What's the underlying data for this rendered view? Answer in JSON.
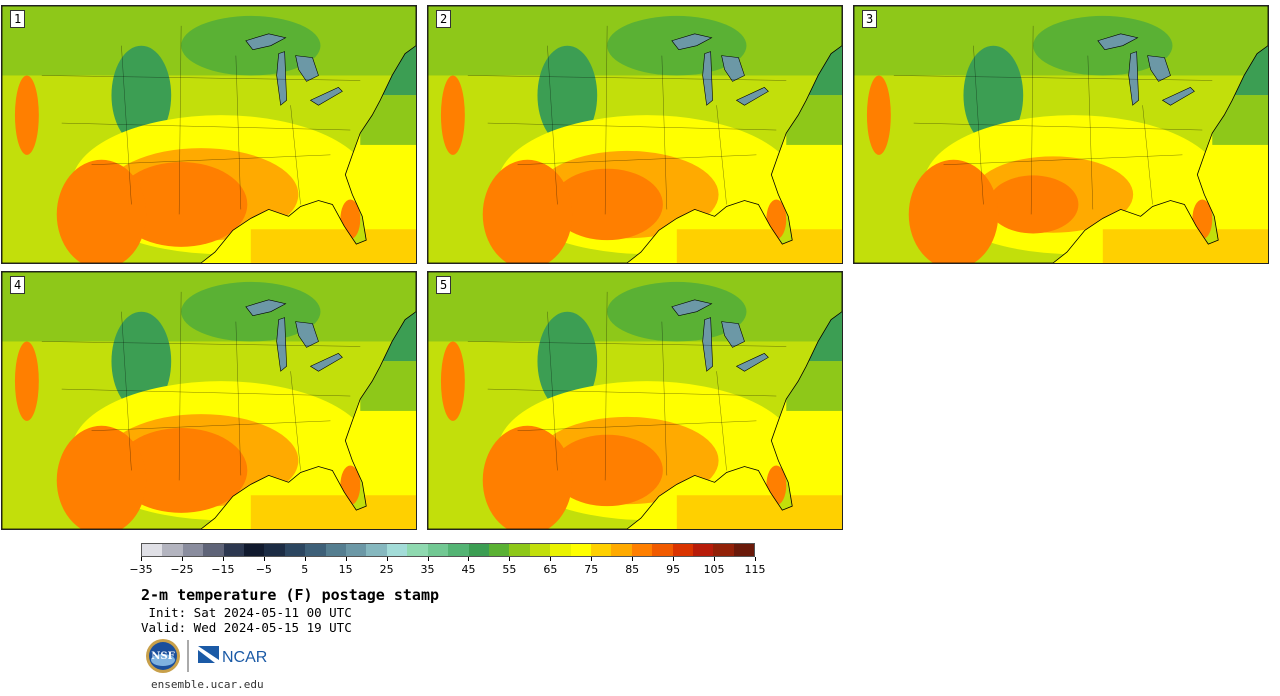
{
  "panels": [
    {
      "label": "1",
      "variant": "hot"
    },
    {
      "label": "2",
      "variant": "mid"
    },
    {
      "label": "3",
      "variant": "cool"
    },
    {
      "label": "4",
      "variant": "hot"
    },
    {
      "label": "5",
      "variant": "mid"
    }
  ],
  "colorbar": {
    "colors": [
      "#e0e0e6",
      "#b3b4bf",
      "#8a8d9e",
      "#5f6478",
      "#2d3850",
      "#111a2e",
      "#1c2c44",
      "#2c4660",
      "#3e6078",
      "#557e90",
      "#6c98a6",
      "#86b8bf",
      "#a3dcd8",
      "#8fd9b0",
      "#72c893",
      "#54b474",
      "#3c9e53",
      "#5ab134",
      "#8ec819",
      "#c2df0b",
      "#eaf200",
      "#ffff00",
      "#ffd000",
      "#ffaa00",
      "#ff7f00",
      "#f05a00",
      "#d93300",
      "#b71c0a",
      "#922108",
      "#6a1a0a"
    ],
    "tick_labels": [
      "-35",
      "-25",
      "-15",
      "-5",
      "5",
      "15",
      "25",
      "35",
      "45",
      "55",
      "65",
      "75",
      "85",
      "95",
      "105",
      "115"
    ]
  },
  "title": "2-m temperature (F) postage stamp",
  "init": " Init: Sat 2024-05-11 00 UTC",
  "valid": "Valid: Wed 2024-05-15 19 UTC",
  "credit": "ensemble.ucar.edu",
  "logos": {
    "nsf": "NSF",
    "ncar": "NCAR"
  },
  "colors": {
    "ocean_warm": "#ffff00",
    "land_cool": "#3f9e4f",
    "land_hot": "#ff7f00"
  }
}
